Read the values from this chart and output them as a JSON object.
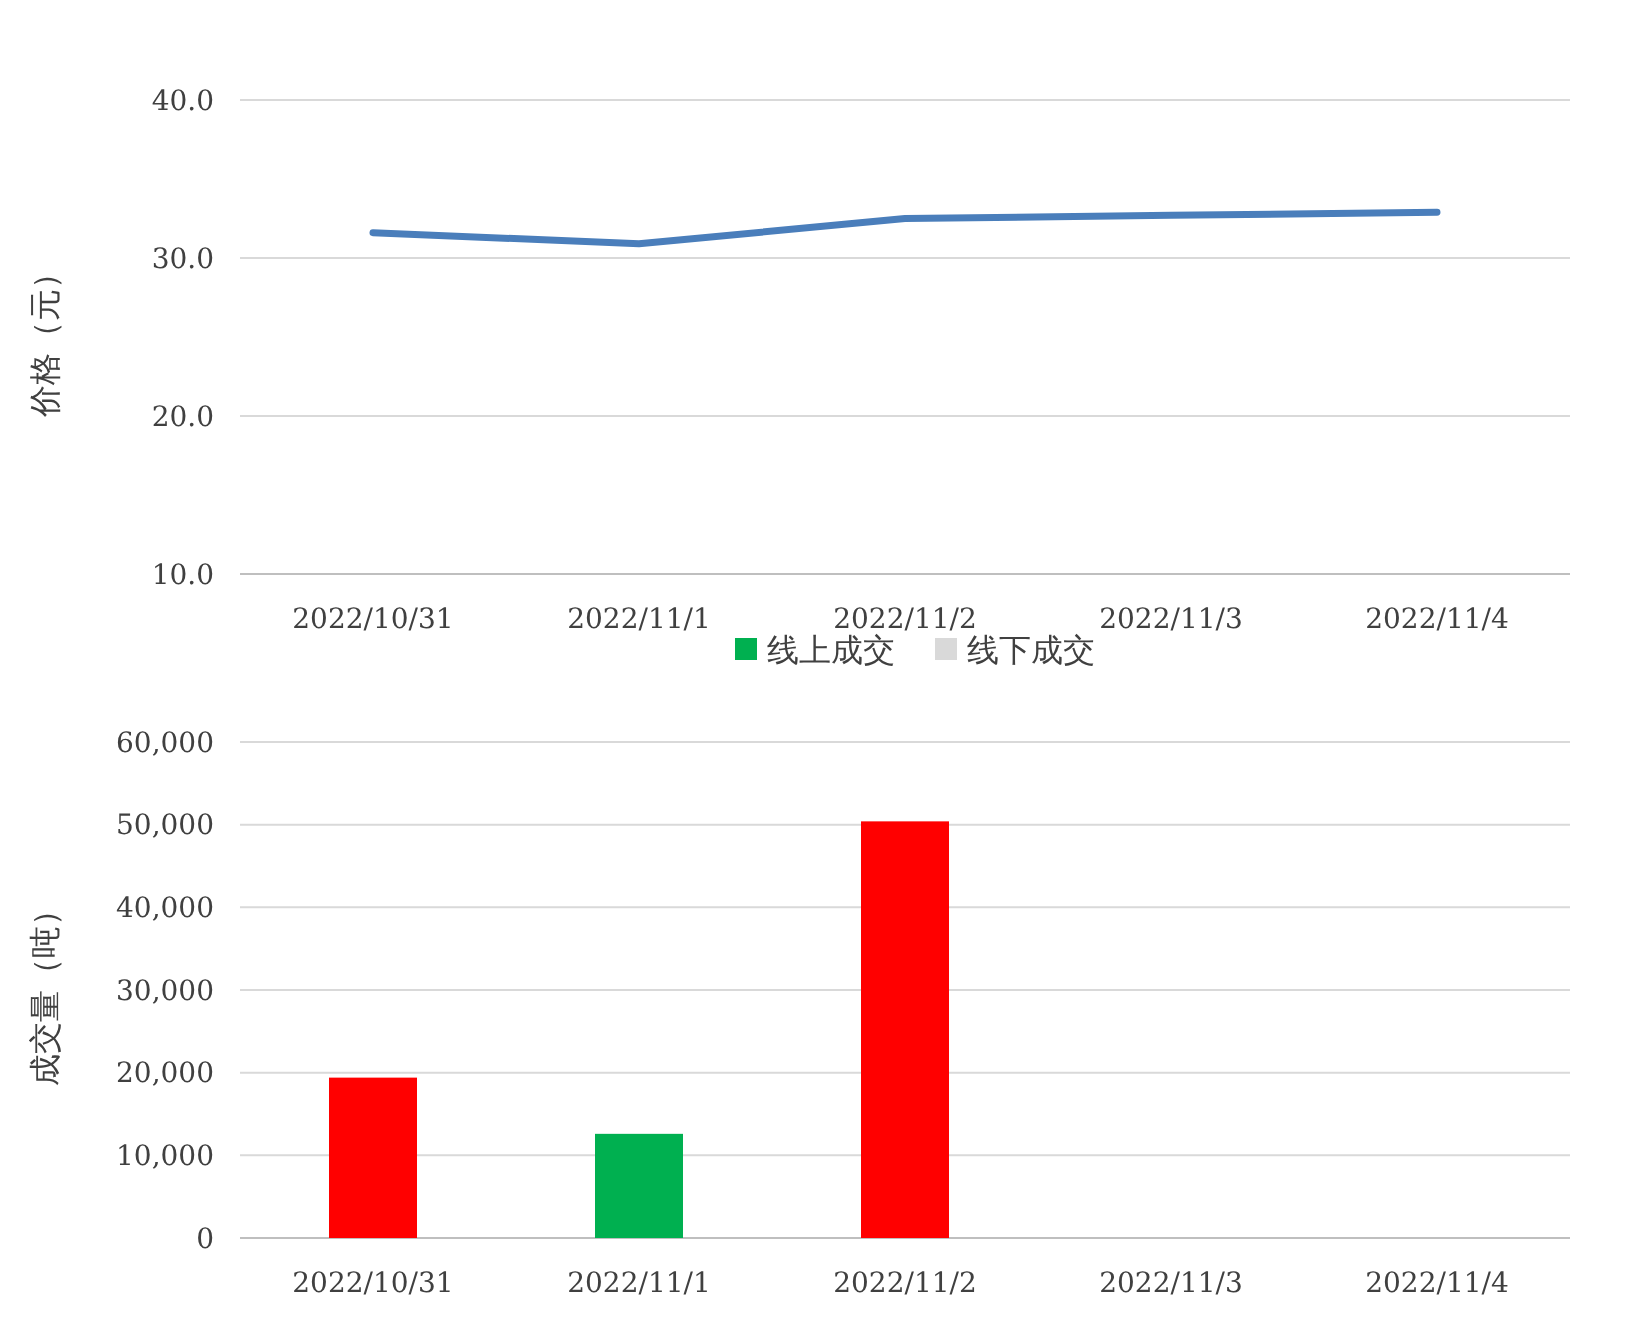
{
  "chart_data": [
    {
      "type": "line",
      "ylabel": "价格（元）",
      "categories": [
        "2022/10/31",
        "2022/11/1",
        "2022/11/2",
        "2022/11/3",
        "2022/11/4"
      ],
      "series": [
        {
          "color": "#4a7ebb",
          "values": [
            31.6,
            30.9,
            32.5,
            32.7,
            32.9
          ]
        }
      ],
      "ylim": [
        10,
        40
      ],
      "yticks": [
        {
          "value": 10,
          "label": "10.0"
        },
        {
          "value": 20,
          "label": "20.0"
        },
        {
          "value": 30,
          "label": "30.0"
        },
        {
          "value": 40,
          "label": "40.0"
        }
      ],
      "grid": "y",
      "legend": false,
      "marker": "none",
      "line_style": "solid"
    },
    {
      "type": "bar",
      "ylabel": "成交量（吨）",
      "categories": [
        "2022/10/31",
        "2022/11/1",
        "2022/11/2",
        "2022/11/3",
        "2022/11/4"
      ],
      "series": [
        {
          "name": "线上成交",
          "color": "#00b050",
          "colors": [
            "#ff0000",
            "#00b050",
            "#ff0000",
            null,
            null
          ],
          "values": [
            19400,
            12600,
            50400,
            null,
            null
          ]
        },
        {
          "name": "线下成交",
          "color": "#d9d9d9",
          "values": [
            null,
            null,
            null,
            null,
            null
          ]
        }
      ],
      "ylim": [
        0,
        60000
      ],
      "yticks": [
        0,
        {
          "value": 10000,
          "label": "10,000"
        },
        {
          "value": 20000,
          "label": "20,000"
        },
        {
          "value": 30000,
          "label": "30,000"
        },
        {
          "value": 40000,
          "label": "40,000"
        },
        {
          "value": 50000,
          "label": "50,000"
        },
        {
          "value": 60000,
          "label": "60,000"
        }
      ],
      "grid": "y",
      "legend": "top"
    }
  ]
}
